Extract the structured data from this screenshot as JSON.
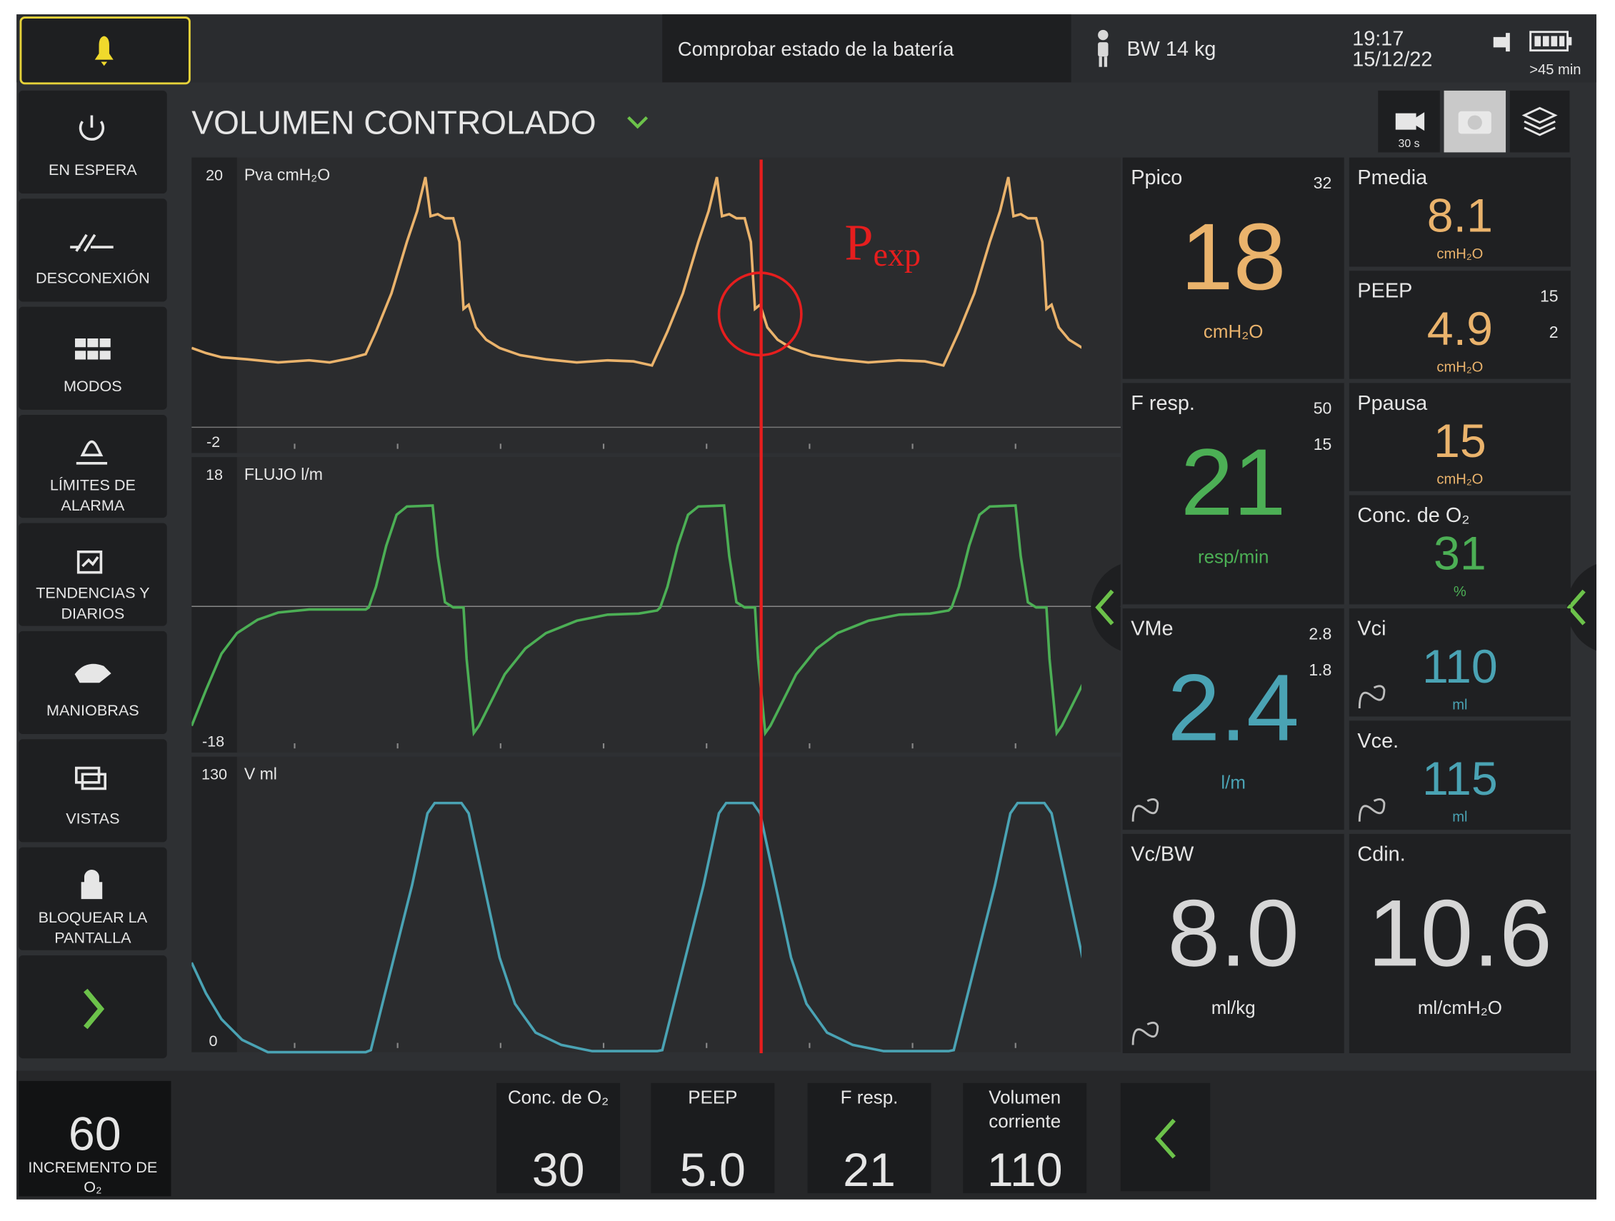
{
  "top_bar": {
    "message": "Comprobar estado de la batería",
    "weight": "BW 14 kg",
    "time": "19:17",
    "date": "15/12/22",
    "battery": ">45 min"
  },
  "mode": "VOLUMEN CONTROLADO",
  "toolbar": {
    "record": "30 s"
  },
  "menu": [
    [
      "EN ESPERA"
    ],
    [
      "DESCONEXIÓN"
    ],
    [
      "MODOS"
    ],
    [
      "LÍMITES DE",
      "ALARMA"
    ],
    [
      "TENDENCIAS Y",
      "DIARIOS"
    ],
    [
      "MANIOBRAS"
    ],
    [
      "VISTAS"
    ],
    [
      "BLOQUEAR LA",
      "PANTALLA"
    ]
  ],
  "waveforms": [
    {
      "label": "Pva cmH₂O",
      "top": "20",
      "bottom": "-2"
    },
    {
      "label": "FLUJO l/m",
      "top": "18",
      "bottom": "-18"
    },
    {
      "label": "V ml",
      "top": "130",
      "bottom": "0"
    }
  ],
  "annotation": {
    "text": "P",
    "subscript": "exp"
  },
  "parameters": [
    {
      "name": "Ppico",
      "value": "18",
      "unit": "cmH₂O",
      "limits": [
        "32"
      ]
    },
    {
      "name": "Pmedia",
      "value": "8.1",
      "unit": "cmH₂O"
    },
    {
      "name": "PEEP",
      "value": "4.9",
      "unit": "cmH₂O",
      "limits": [
        "15",
        "2"
      ]
    },
    {
      "name": "F resp.",
      "value": "21",
      "unit": "resp/min",
      "limits": [
        "50",
        "15"
      ]
    },
    {
      "name": "Ppausa",
      "value": "15",
      "unit": "cmH₂O"
    },
    {
      "name": "Conc. de O₂",
      "value": "31",
      "unit": "%"
    },
    {
      "name": "VMe",
      "value": "2.4",
      "unit": "l/m",
      "limits": [
        "2.8",
        "1.8"
      ]
    },
    {
      "name": "Vci",
      "value": "110",
      "unit": "ml"
    },
    {
      "name": "Vce.",
      "value": "115",
      "unit": "ml"
    },
    {
      "name": "Vc/BW",
      "value": "8.0",
      "unit": "ml/kg"
    },
    {
      "name": "Cdin.",
      "value": "10.6",
      "unit": "ml/cmH₂O"
    }
  ],
  "o2_boost": {
    "value": "60",
    "label": [
      "INCREMENTO DE",
      "O₂"
    ]
  },
  "settings": [
    {
      "name": [
        "Conc. de O₂"
      ],
      "value": "30"
    },
    {
      "name": [
        "PEEP"
      ],
      "value": "5.0"
    },
    {
      "name": [
        "F resp."
      ],
      "value": "21"
    },
    {
      "name": [
        "Volumen",
        "corriente"
      ],
      "value": "110"
    }
  ]
}
